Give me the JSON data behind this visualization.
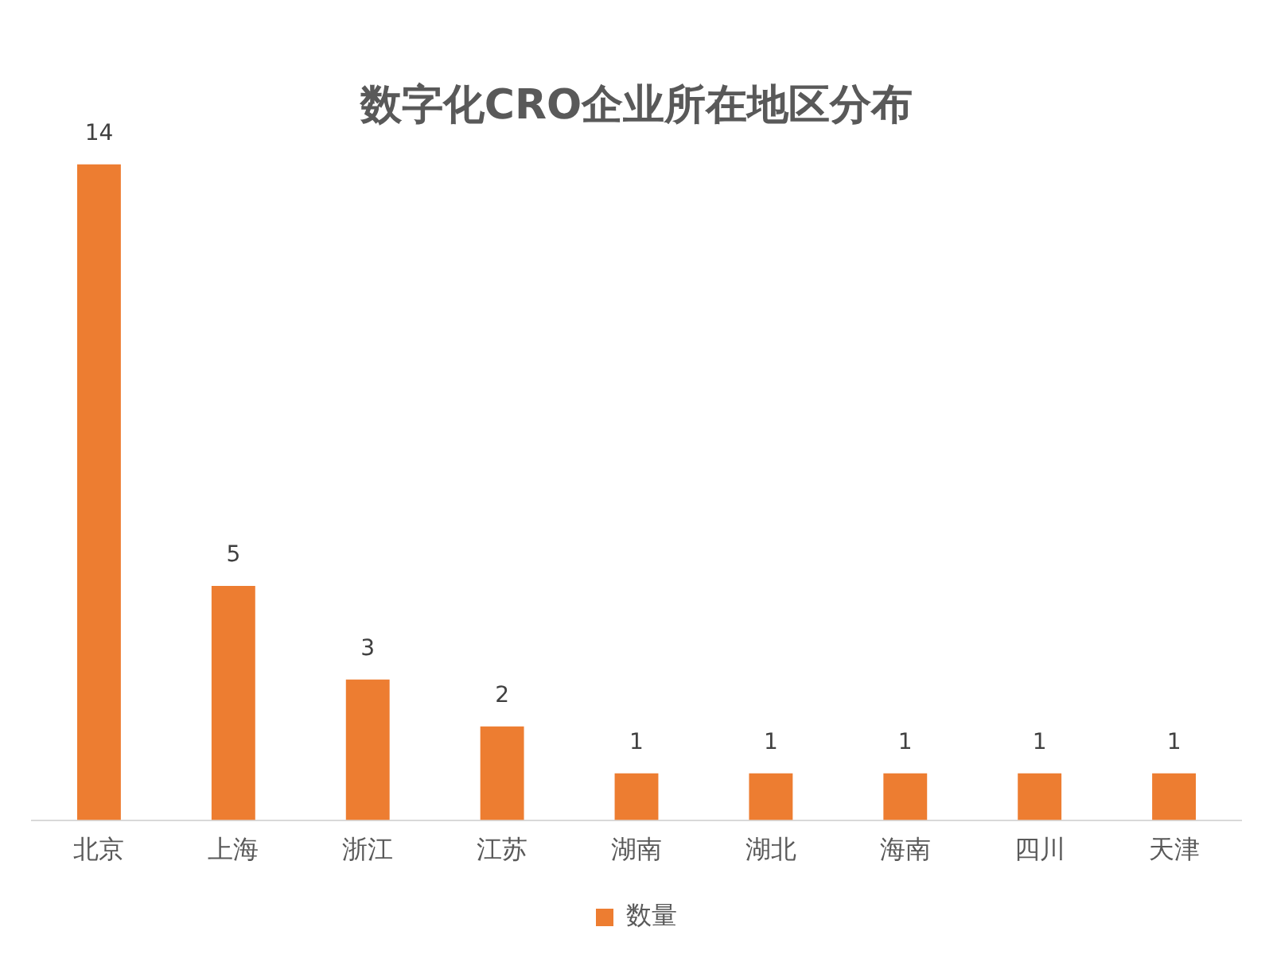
{
  "chart_data": {
    "type": "bar",
    "title": "数字化CRO企业所在地区分布",
    "categories": [
      "北京",
      "上海",
      "浙江",
      "江苏",
      "湖南",
      "湖北",
      "海南",
      "四川",
      "天津"
    ],
    "series": [
      {
        "name": "数量",
        "color": "#ed7d31",
        "values": [
          14,
          5,
          3,
          2,
          1,
          1,
          1,
          1,
          1
        ]
      }
    ],
    "data_labels": true,
    "legend": "bottom",
    "grid": false,
    "tick_labels": "x"
  }
}
